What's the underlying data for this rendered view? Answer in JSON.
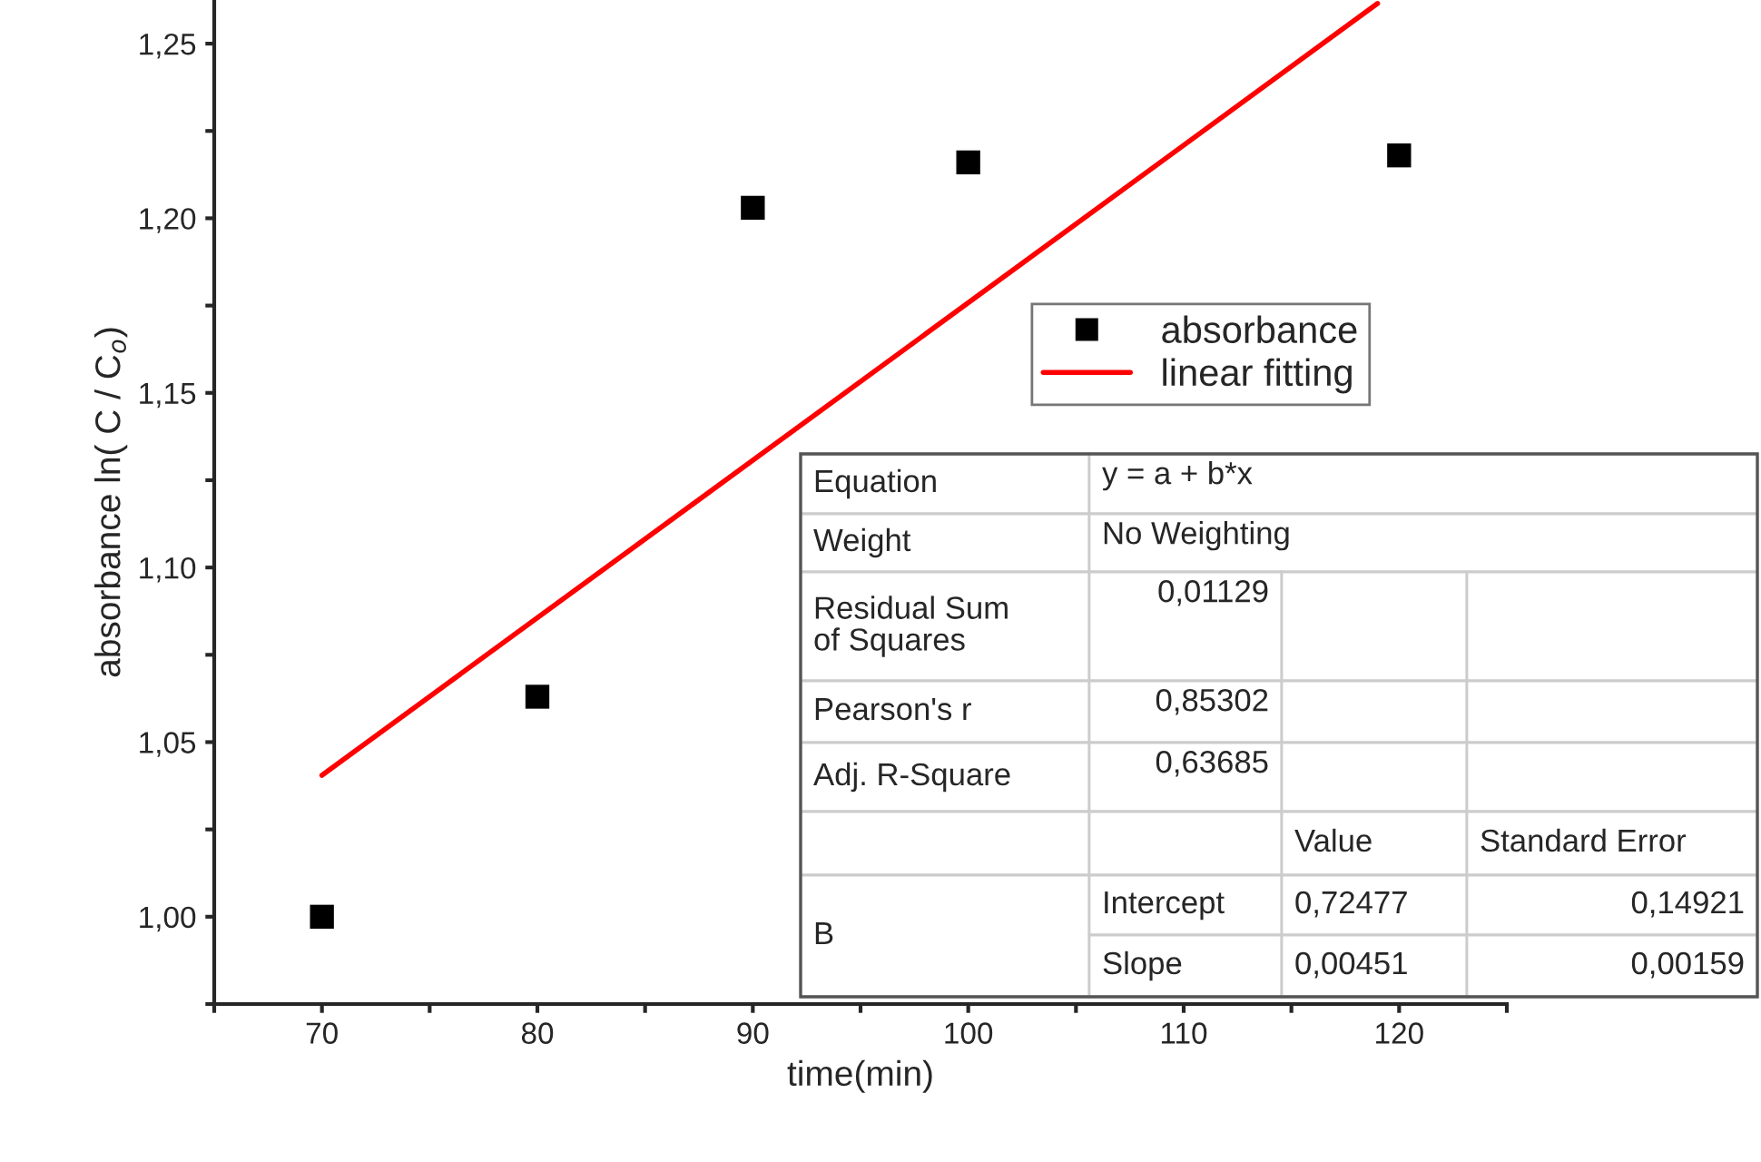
{
  "chart_data": {
    "type": "scatter",
    "xlabel": "time(min)",
    "ylabel": "absorbance ln( C / C$_{o}$)",
    "xlim": [
      65,
      125
    ],
    "ylim": [
      0.975,
      1.2625
    ],
    "xticks": [
      {
        "value": 65,
        "label": null
      },
      70,
      {
        "value": 75,
        "label": null
      },
      80,
      {
        "value": 85,
        "label": null
      },
      90,
      {
        "value": 95,
        "label": null
      },
      100,
      {
        "value": 105,
        "label": null
      },
      110,
      {
        "value": 115,
        "label": null
      },
      120,
      {
        "value": 125,
        "label": null
      }
    ],
    "yticks": [
      {
        "value": 0.975,
        "label": null
      },
      {
        "value": 1.0,
        "label": "1,00"
      },
      {
        "value": 1.025,
        "label": null
      },
      {
        "value": 1.05,
        "label": "1,05"
      },
      {
        "value": 1.075,
        "label": null
      },
      {
        "value": 1.1,
        "label": "1,10"
      },
      {
        "value": 1.125,
        "label": null
      },
      {
        "value": 1.15,
        "label": "1,15"
      },
      {
        "value": 1.175,
        "label": null
      },
      {
        "value": 1.2,
        "label": "1,20"
      },
      {
        "value": 1.225,
        "label": null
      },
      {
        "value": 1.25,
        "label": "1,25"
      }
    ],
    "grid": false,
    "legend": "right",
    "series": [
      {
        "name": "absorbance",
        "color": "#000000",
        "marker": "square",
        "x": [
          70,
          80,
          90,
          100,
          120
        ],
        "values": [
          1.0,
          1.063,
          1.203,
          1.216,
          1.218
        ]
      },
      {
        "name": "linear fitting",
        "type": "line",
        "color": "#ff0000",
        "marker": "none",
        "line_style": "solid",
        "x": [
          70,
          119
        ],
        "values": [
          1.0405,
          1.2615
        ]
      }
    ],
    "annotations": [
      "Equation",
      "y = a + b*x",
      "Weight",
      "No Weighting",
      "Residual Sum\nof Squares",
      "0,01129",
      "Pearson's r",
      "0,85302",
      "Adj. R-Square",
      "0,63685",
      "Value",
      "Standard Error",
      "B",
      "Intercept",
      "0,72477",
      "0,14921",
      "Slope",
      "0,00451",
      "0,00159"
    ]
  }
}
